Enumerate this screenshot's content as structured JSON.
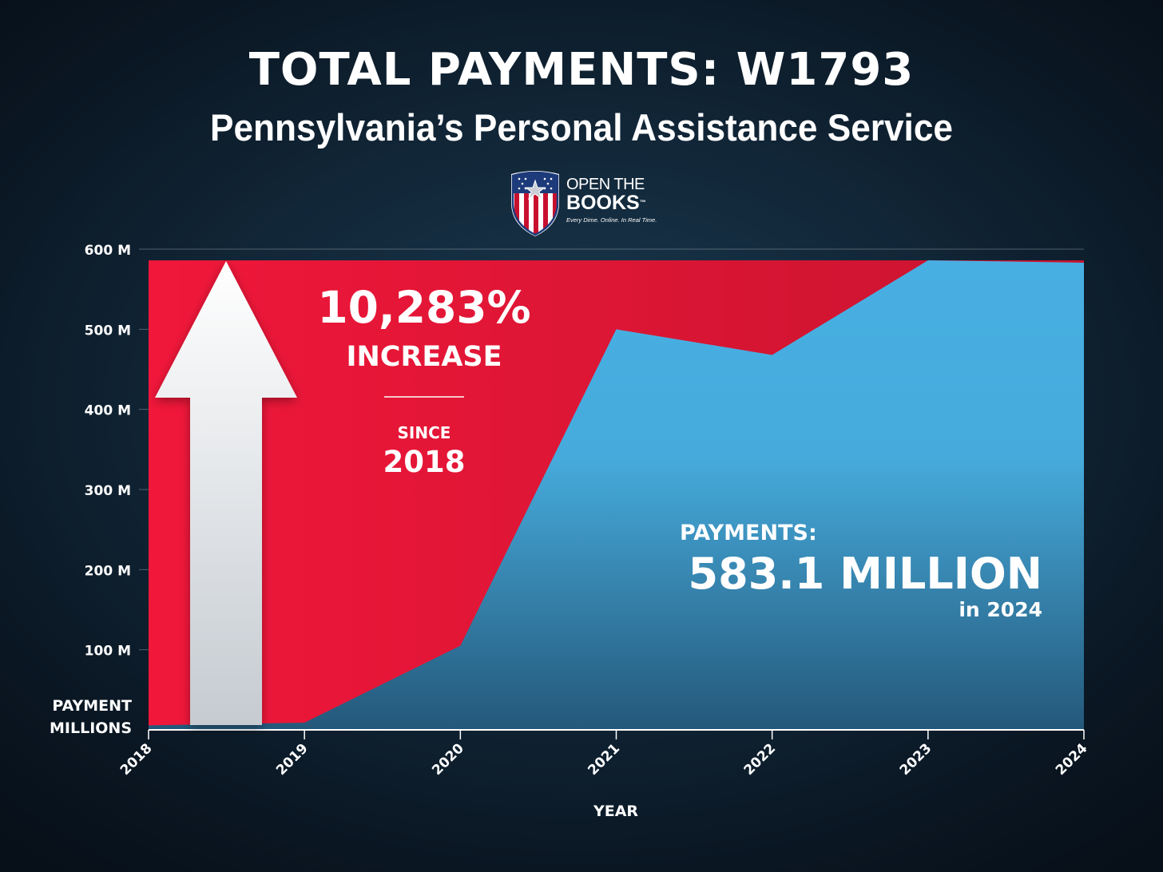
{
  "header": {
    "title": "TOTAL PAYMENTS: W1793",
    "subtitle": "Pennsylvania’s Personal Assistance Service"
  },
  "logo": {
    "line1": "OPEN THE",
    "line2": "BOOKS",
    "trademark": "™",
    "tagline": "Every Dime. Online. In Real Time.",
    "icon": "shield-flag-icon"
  },
  "colors": {
    "background": "#0d1c2a",
    "highlight_red": "#e21836",
    "area_blue": "#48afe3",
    "arrow": "#eef0f2"
  },
  "callouts": {
    "increase_value": "10,283%",
    "increase_label": "INCREASE",
    "since_label": "SINCE",
    "since_year": "2018",
    "payments_label": "PAYMENTS:",
    "payments_value": "583.1 MILLION",
    "payments_year": "in 2024"
  },
  "chart_data": {
    "type": "area",
    "xlabel": "YEAR",
    "ylabel": "PAYMENT MILLIONS",
    "ylabel_lines": [
      "PAYMENT",
      "MILLIONS"
    ],
    "x": [
      2018,
      2019,
      2020,
      2021,
      2022,
      2023,
      2024
    ],
    "series": [
      {
        "values": [
          5.6,
          9,
          105,
          500,
          468,
          586,
          583.1
        ]
      }
    ],
    "ylim": [
      0,
      600
    ],
    "yticks": [
      100,
      200,
      300,
      400,
      500,
      600
    ],
    "ytick_labels": [
      "100 M",
      "200 M",
      "300 M",
      "400 M",
      "500 M",
      "600 M"
    ],
    "xtick_labels": [
      "2018",
      "2019",
      "2020",
      "2021",
      "2022",
      "2023",
      "2024"
    ],
    "grid": true
  }
}
